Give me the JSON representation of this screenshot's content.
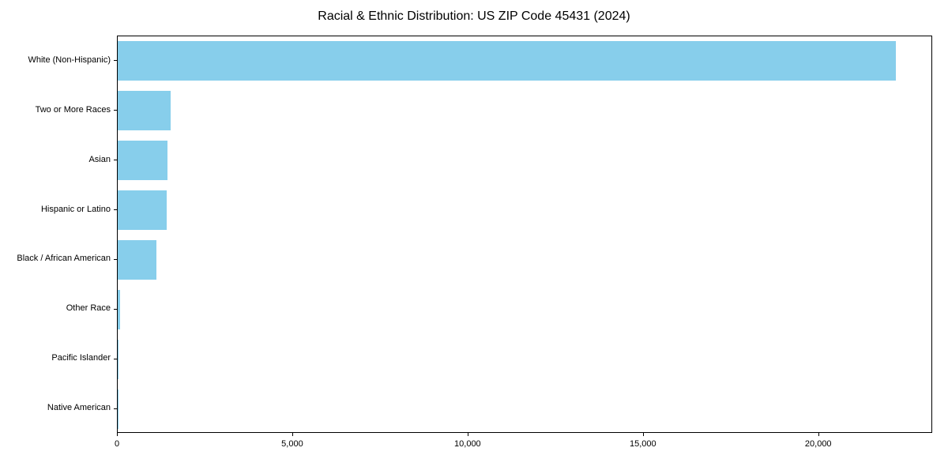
{
  "chart_data": {
    "type": "bar",
    "orientation": "horizontal",
    "title": "Racial & Ethnic Distribution: US ZIP Code 45431 (2024)",
    "categories": [
      "White (Non-Hispanic)",
      "Two or More Races",
      "Asian",
      "Hispanic or Latino",
      "Black / African American",
      "Other Race",
      "Pacific Islander",
      "Native American"
    ],
    "values": [
      22200,
      1510,
      1430,
      1400,
      1100,
      60,
      15,
      10
    ],
    "xlabel": "",
    "ylabel": "",
    "xlim": [
      0,
      23250
    ],
    "x_ticks": [
      0,
      5000,
      10000,
      15000,
      20000
    ],
    "x_tick_labels": [
      "0",
      "5,000",
      "10,000",
      "15,000",
      "20,000"
    ],
    "bar_color": "#87CEEB",
    "grid": "off",
    "legend": "none"
  }
}
